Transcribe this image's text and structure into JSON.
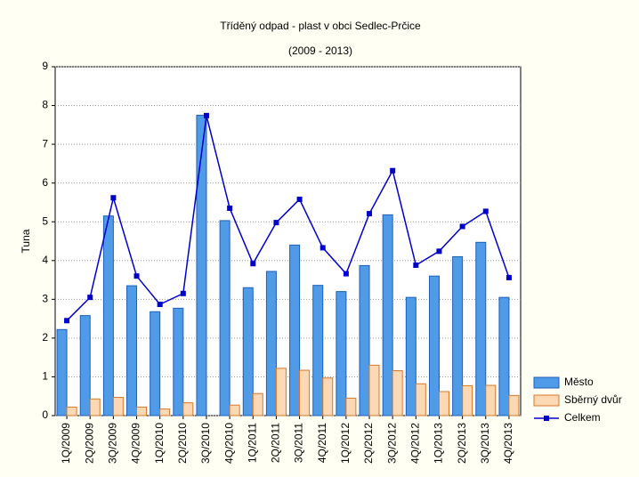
{
  "chart_data": {
    "type": "bar",
    "title": "Tříděný odpad - plast v obci Sedlec-Prčice",
    "subtitle": "(2009 - 2013)",
    "y_label": "Tuna",
    "categories": [
      "1Q/2009",
      "2Q/2009",
      "3Q/2009",
      "4Q/2009",
      "1Q/2010",
      "2Q/2010",
      "3Q/2010",
      "4Q/2010",
      "1Q/2011",
      "2Q/2011",
      "3Q/2011",
      "4Q/2011",
      "1Q/2012",
      "2Q/2012",
      "3Q/2012",
      "4Q/2012",
      "1Q/2013",
      "2Q/2013",
      "3Q/2013",
      "4Q/2013"
    ],
    "series": [
      {
        "name": "Město",
        "type": "bar",
        "color": "#4f9be8",
        "values": [
          2.22,
          2.58,
          5.15,
          3.35,
          2.68,
          2.77,
          7.75,
          5.03,
          3.3,
          3.72,
          4.4,
          3.36,
          3.2,
          3.87,
          5.18,
          3.05,
          3.6,
          4.1,
          4.47,
          3.05
        ]
      },
      {
        "name": "Sběrný dvůr",
        "type": "bar",
        "color": "#fcd9b4",
        "values": [
          0.22,
          0.43,
          0.47,
          0.22,
          0.17,
          0.33,
          0,
          0.27,
          0.57,
          1.22,
          1.17,
          0.97,
          0.45,
          1.3,
          1.16,
          0.82,
          0.62,
          0.77,
          0.78,
          0.52
        ]
      },
      {
        "name": "Celkem",
        "type": "line",
        "color": "#0000cc",
        "values": [
          2.45,
          3.05,
          5.62,
          3.6,
          2.87,
          3.15,
          7.74,
          5.35,
          3.92,
          4.98,
          5.58,
          4.33,
          3.66,
          5.21,
          6.32,
          3.88,
          4.24,
          4.88,
          5.27,
          3.56
        ]
      }
    ],
    "ylim": [
      0,
      9
    ],
    "yticks": [
      0,
      1,
      2,
      3,
      4,
      5,
      6,
      7,
      8,
      9
    ],
    "grid": true,
    "legend": "bottom-right"
  }
}
